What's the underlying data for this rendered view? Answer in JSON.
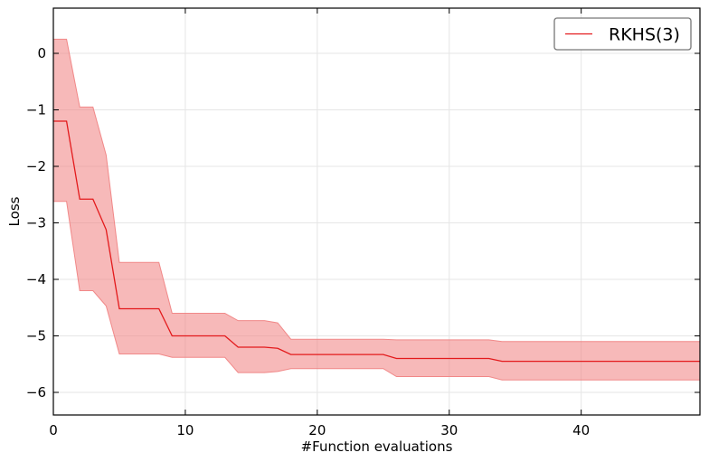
{
  "chart_data": {
    "type": "line",
    "xlabel": "#Function evaluations",
    "ylabel": "Loss",
    "xlim": [
      0,
      49
    ],
    "ylim": [
      -6.4,
      0.8
    ],
    "x_ticks": [
      0,
      10,
      20,
      30,
      40
    ],
    "y_ticks": [
      0,
      -1,
      -2,
      -3,
      -4,
      -5,
      -6
    ],
    "x_tick_labels": [
      "0",
      "10",
      "20",
      "30",
      "40"
    ],
    "y_tick_labels": [
      "0",
      "−1",
      "−2",
      "−3",
      "−4",
      "−5",
      "−6"
    ],
    "grid": true,
    "legend_position": "top-right",
    "series": [
      {
        "name": "RKHS(3)",
        "color": "#e31a1c",
        "band_color": "#f08080",
        "x": [
          0,
          1,
          2,
          3,
          4,
          5,
          6,
          7,
          8,
          9,
          10,
          11,
          12,
          13,
          14,
          15,
          16,
          17,
          18,
          19,
          20,
          21,
          22,
          23,
          24,
          25,
          26,
          27,
          28,
          29,
          30,
          31,
          32,
          33,
          34,
          35,
          36,
          37,
          38,
          39,
          40,
          41,
          42,
          43,
          44,
          45,
          46,
          47,
          48,
          49
        ],
        "mean": [
          -1.2,
          -1.2,
          -2.58,
          -2.58,
          -3.12,
          -4.52,
          -4.52,
          -4.52,
          -4.52,
          -5.0,
          -5.0,
          -5.0,
          -5.0,
          -5.0,
          -5.2,
          -5.2,
          -5.2,
          -5.22,
          -5.33,
          -5.33,
          -5.33,
          -5.33,
          -5.33,
          -5.33,
          -5.33,
          -5.33,
          -5.4,
          -5.4,
          -5.4,
          -5.4,
          -5.4,
          -5.4,
          -5.4,
          -5.4,
          -5.45,
          -5.45,
          -5.45,
          -5.45,
          -5.45,
          -5.45,
          -5.45,
          -5.45,
          -5.45,
          -5.45,
          -5.45,
          -5.45,
          -5.45,
          -5.45,
          -5.45,
          -5.45
        ],
        "upper": [
          0.25,
          0.25,
          -0.95,
          -0.95,
          -1.8,
          -3.7,
          -3.7,
          -3.7,
          -3.7,
          -4.6,
          -4.6,
          -4.6,
          -4.6,
          -4.6,
          -4.73,
          -4.73,
          -4.73,
          -4.77,
          -5.06,
          -5.06,
          -5.06,
          -5.06,
          -5.06,
          -5.06,
          -5.06,
          -5.06,
          -5.07,
          -5.07,
          -5.07,
          -5.07,
          -5.07,
          -5.07,
          -5.07,
          -5.07,
          -5.1,
          -5.1,
          -5.1,
          -5.1,
          -5.1,
          -5.1,
          -5.1,
          -5.1,
          -5.1,
          -5.1,
          -5.1,
          -5.1,
          -5.1,
          -5.1,
          -5.1,
          -5.1
        ],
        "lower": [
          -2.62,
          -2.62,
          -4.2,
          -4.2,
          -4.47,
          -5.32,
          -5.32,
          -5.32,
          -5.32,
          -5.38,
          -5.38,
          -5.38,
          -5.38,
          -5.38,
          -5.65,
          -5.65,
          -5.65,
          -5.63,
          -5.58,
          -5.58,
          -5.58,
          -5.58,
          -5.58,
          -5.58,
          -5.58,
          -5.58,
          -5.72,
          -5.72,
          -5.72,
          -5.72,
          -5.72,
          -5.72,
          -5.72,
          -5.72,
          -5.78,
          -5.78,
          -5.78,
          -5.78,
          -5.78,
          -5.78,
          -5.78,
          -5.78,
          -5.78,
          -5.78,
          -5.78,
          -5.78,
          -5.78,
          -5.78,
          -5.78,
          -5.78
        ]
      }
    ]
  }
}
